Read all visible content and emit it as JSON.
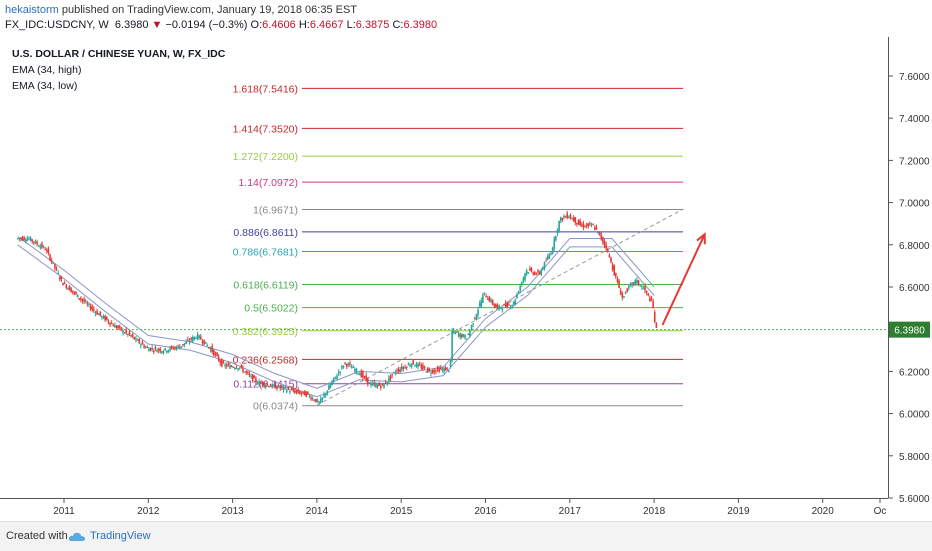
{
  "header": {
    "author": "hekaistorm",
    "published": "published on TradingView.com, January 19, 2018 06:35 EST",
    "symbol": "FX_IDC:USDCNY, W",
    "last": "6.3980",
    "arrow": "▼",
    "change": "−0.0194 (−0.3%)",
    "o_label": "O:",
    "o_value": "6.4606",
    "h_label": "H:",
    "h_value": "6.4667",
    "l_label": "L:",
    "l_value": "6.3875",
    "c_label": "C:",
    "c_value": "6.3980"
  },
  "legend": {
    "title": "U.S. DOLLAR / CHINESE YUAN, W, FX_IDC",
    "ema_high": "EMA (34, high)",
    "ema_low": "EMA (34, low)"
  },
  "footer": {
    "created": "Created with",
    "brand": "TradingView"
  },
  "colors": {
    "up": "#26a69a",
    "down": "#e53935",
    "ema": "#8a96c9",
    "last_price": "#4caf50",
    "fib_red": "#c62828",
    "fib_lime": "#9ccc3c",
    "fib_magenta": "#d63384",
    "fib_gray": "#888888",
    "fib_navy": "#3f3f9e",
    "fib_teal": "#2aa5b8",
    "fib_green": "#4caf50",
    "fib_purple": "#8e44ad",
    "arrow": "#e53935"
  },
  "chart_data": {
    "type": "candlestick",
    "x_ticks": [
      "2011",
      "2012",
      "2013",
      "2014",
      "2015",
      "2016",
      "2017",
      "2018",
      "2019",
      "2020",
      "Oc"
    ],
    "y_ticks": [
      "7.6000",
      "7.4000",
      "7.2000",
      "7.0000",
      "6.8000",
      "6.6000",
      "6.4000",
      "6.2000",
      "6.0000",
      "5.8000",
      "5.6000"
    ],
    "ylim": [
      5.56,
      7.73
    ],
    "last_price_label": "6.3980",
    "last_price": 6.398,
    "fib_levels": [
      {
        "label": "1.618(7.5416)",
        "value": 7.5416,
        "color": "fib_red"
      },
      {
        "label": "1.414(7.3520)",
        "value": 7.352,
        "color": "fib_red"
      },
      {
        "label": "1.272(7.2200)",
        "value": 7.22,
        "color": "fib_lime"
      },
      {
        "label": "1.14(7.0972)",
        "value": 7.0972,
        "color": "fib_magenta"
      },
      {
        "label": "1(6.9671)",
        "value": 6.9671,
        "color": "fib_gray"
      },
      {
        "label": "0.886(6.8611)",
        "value": 6.8611,
        "color": "fib_navy"
      },
      {
        "label": "0.786(6.7681)",
        "value": 6.7681,
        "color": "fib_teal"
      },
      {
        "label": "0.618(6.6119)",
        "value": 6.6119,
        "color": "fib_green"
      },
      {
        "label": "0.5(6.5022)",
        "value": 6.5022,
        "color": "fib_green"
      },
      {
        "label": "0.382(6.3925)",
        "value": 6.3925,
        "color": "fib_lime"
      },
      {
        "label": "0.236(6.2568)",
        "value": 6.2568,
        "color": "fib_red"
      },
      {
        "label": "0.112(6.1415)",
        "value": 6.1415,
        "color": "fib_purple"
      },
      {
        "label": "0(6.0374)",
        "value": 6.0374,
        "color": "fib_gray"
      }
    ],
    "price_path": [
      [
        2010.45,
        6.83
      ],
      [
        2010.6,
        6.83
      ],
      [
        2010.8,
        6.78
      ],
      [
        2011.0,
        6.62
      ],
      [
        2011.2,
        6.55
      ],
      [
        2011.4,
        6.48
      ],
      [
        2011.6,
        6.42
      ],
      [
        2011.8,
        6.37
      ],
      [
        2012.0,
        6.31
      ],
      [
        2012.2,
        6.3
      ],
      [
        2012.4,
        6.32
      ],
      [
        2012.6,
        6.37
      ],
      [
        2012.75,
        6.31
      ],
      [
        2012.9,
        6.23
      ],
      [
        2013.1,
        6.22
      ],
      [
        2013.3,
        6.15
      ],
      [
        2013.5,
        6.13
      ],
      [
        2013.7,
        6.11
      ],
      [
        2013.9,
        6.09
      ],
      [
        2014.05,
        6.05
      ],
      [
        2014.2,
        6.15
      ],
      [
        2014.35,
        6.24
      ],
      [
        2014.5,
        6.2
      ],
      [
        2014.65,
        6.14
      ],
      [
        2014.8,
        6.13
      ],
      [
        2014.95,
        6.2
      ],
      [
        2015.15,
        6.24
      ],
      [
        2015.35,
        6.2
      ],
      [
        2015.5,
        6.21
      ],
      [
        2015.6,
        6.21
      ],
      [
        2015.62,
        6.39
      ],
      [
        2015.8,
        6.36
      ],
      [
        2016.0,
        6.57
      ],
      [
        2016.15,
        6.5
      ],
      [
        2016.35,
        6.52
      ],
      [
        2016.5,
        6.68
      ],
      [
        2016.65,
        6.66
      ],
      [
        2016.8,
        6.77
      ],
      [
        2016.9,
        6.92
      ],
      [
        2017.0,
        6.94
      ],
      [
        2017.15,
        6.89
      ],
      [
        2017.3,
        6.89
      ],
      [
        2017.45,
        6.79
      ],
      [
        2017.55,
        6.66
      ],
      [
        2017.65,
        6.54
      ],
      [
        2017.68,
        6.58
      ],
      [
        2017.8,
        6.63
      ],
      [
        2017.9,
        6.59
      ],
      [
        2018.0,
        6.52
      ],
      [
        2018.04,
        6.398
      ]
    ],
    "ema_high": [
      [
        2010.45,
        6.84
      ],
      [
        2011.0,
        6.68
      ],
      [
        2011.5,
        6.52
      ],
      [
        2012.0,
        6.37
      ],
      [
        2012.5,
        6.34
      ],
      [
        2013.0,
        6.28
      ],
      [
        2013.5,
        6.19
      ],
      [
        2014.0,
        6.12
      ],
      [
        2014.5,
        6.2
      ],
      [
        2015.0,
        6.19
      ],
      [
        2015.5,
        6.22
      ],
      [
        2016.0,
        6.45
      ],
      [
        2016.5,
        6.6
      ],
      [
        2017.0,
        6.83
      ],
      [
        2017.5,
        6.83
      ],
      [
        2018.0,
        6.6
      ]
    ],
    "ema_low": [
      [
        2010.45,
        6.8
      ],
      [
        2011.0,
        6.64
      ],
      [
        2011.5,
        6.48
      ],
      [
        2012.0,
        6.33
      ],
      [
        2012.5,
        6.3
      ],
      [
        2013.0,
        6.24
      ],
      [
        2013.5,
        6.15
      ],
      [
        2014.0,
        6.08
      ],
      [
        2014.5,
        6.16
      ],
      [
        2015.0,
        6.15
      ],
      [
        2015.5,
        6.18
      ],
      [
        2016.0,
        6.41
      ],
      [
        2016.5,
        6.56
      ],
      [
        2017.0,
        6.79
      ],
      [
        2017.5,
        6.79
      ],
      [
        2018.0,
        6.56
      ]
    ],
    "trendline": [
      [
        2014.0,
        6.04
      ],
      [
        2018.35,
        6.97
      ]
    ],
    "forecast_arrow": [
      [
        2018.1,
        6.42
      ],
      [
        2018.6,
        6.85
      ]
    ]
  }
}
